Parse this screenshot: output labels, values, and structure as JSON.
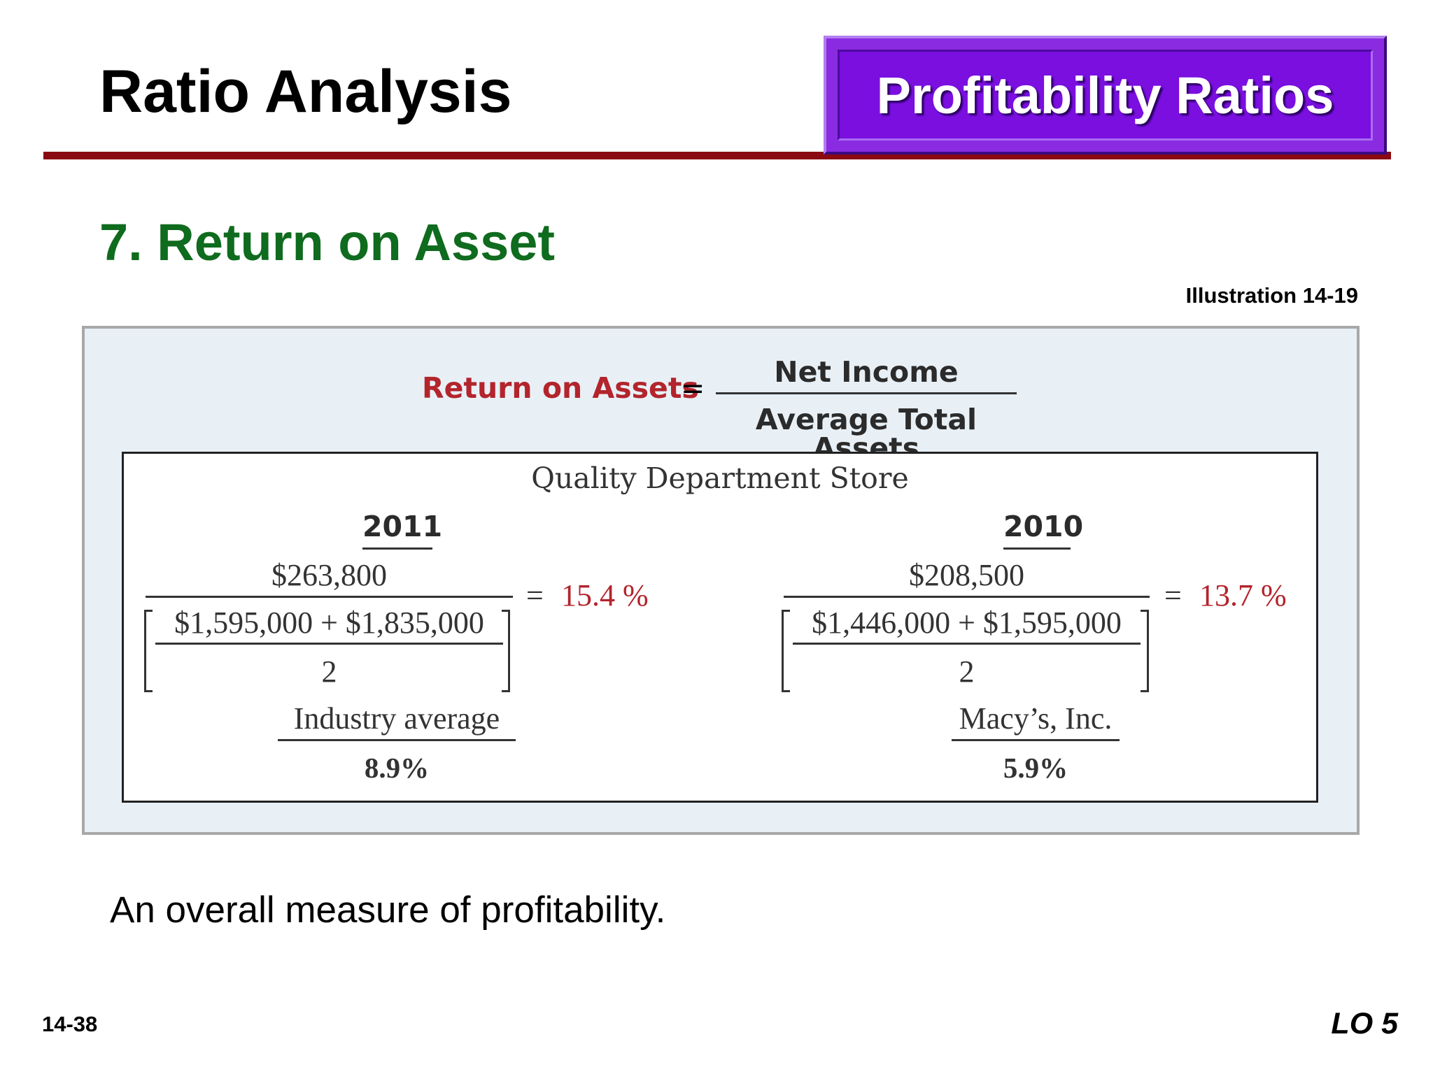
{
  "slide": {
    "title": "Ratio Analysis",
    "badge": "Profitability Ratios",
    "heading": "7. Return on Asset",
    "illustration": "Illustration 14-19",
    "caption": "An overall measure of profitability.",
    "page_number": "14-38",
    "lo": "LO 5"
  },
  "formula": {
    "name": "Return on Assets",
    "equals": "=",
    "numerator": "Net Income",
    "denominator": "Average Total Assets"
  },
  "exhibit": {
    "company": "Quality Department Store",
    "years": [
      {
        "year": "2011",
        "numerator": "$263,800",
        "average_numerator": "$1,595,000 + $1,835,000",
        "average_divisor": "2",
        "result": "= 15.4 %",
        "result_equals": "=",
        "result_value": "15.4 %"
      },
      {
        "year": "2010",
        "numerator": "$208,500",
        "average_numerator": "$1,446,000 + $1,595,000",
        "average_divisor": "2",
        "result_equals": "=",
        "result_value": "13.7 %"
      }
    ],
    "benchmarks": [
      {
        "label": "Industry average",
        "value": "8.9%"
      },
      {
        "label": "Macy’s, Inc.",
        "value": "5.9%"
      }
    ]
  },
  "colors": {
    "title_rule": "#8b0a12",
    "badge": "#7a0fe0",
    "heading": "#0f6b1e",
    "accent_red": "#b3242c",
    "exhibit_background": "#e8f0f6"
  }
}
